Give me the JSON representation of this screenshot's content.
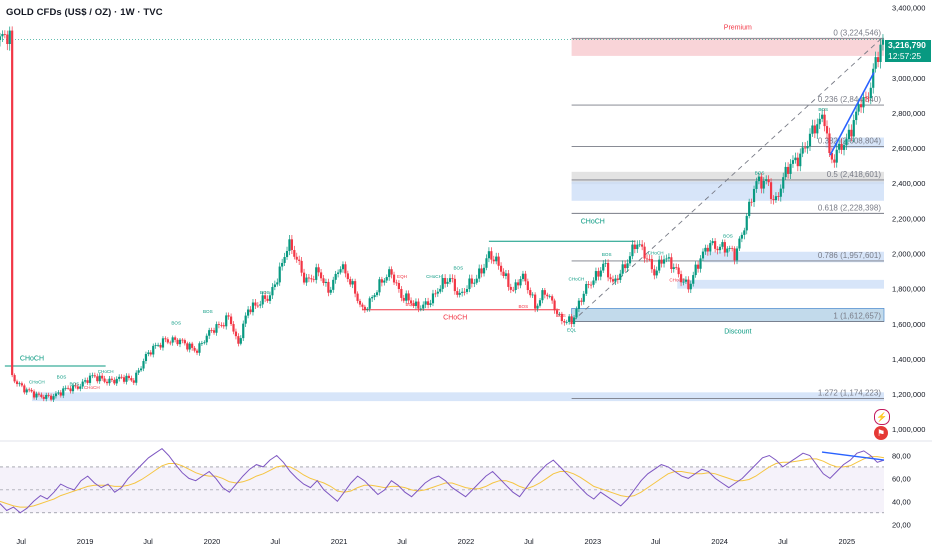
{
  "header": {
    "title": "GOLD CFDs (US$ / OZ) · 1W · TVC"
  },
  "last_price": {
    "value": "3,216,790",
    "countdown": "12:57:25"
  },
  "colors": {
    "up": "#089981",
    "down": "#f23645",
    "price_line": "#131722",
    "premium_zone": "#f7c5cb",
    "discount_zone": "#b8d4e8",
    "blue_zone": "#c9dcf7",
    "gray_zone": "#d9d9d9",
    "rsi_line": "#7e57c2",
    "rsi_ma": "#f5c542",
    "trend_line": "#2962ff"
  },
  "icons": {
    "alert": "flash-icon",
    "event": "flag-icon"
  },
  "chart_data": [
    {
      "type": "candlestick",
      "title": "GOLD CFDs (US$ / OZ) · 1W · TVC",
      "x_ticks": [
        "Jul",
        "2019",
        "Jul",
        "2020",
        "Jul",
        "2021",
        "Jul",
        "2022",
        "Jul",
        "2023",
        "Jul",
        "2024",
        "Jul",
        "2025"
      ],
      "y_ticks": [
        "3,400,000",
        "3,200,000",
        "3,000,000",
        "2,800,000",
        "2,600,000",
        "2,400,000",
        "2,200,000",
        "2,000,000",
        "1,800,000",
        "1,600,000",
        "1,400,000",
        "1,200,000",
        "1,000,000"
      ],
      "ylim": [
        950,
        3420
      ],
      "grid": false,
      "last_value": 3216.79,
      "price_path": [
        [
          "2018-06-01",
          1300
        ],
        [
          "2018-08-15",
          1180
        ],
        [
          "2018-10-15",
          1200
        ],
        [
          "2018-12-01",
          1240
        ],
        [
          "2019-01-15",
          1290
        ],
        [
          "2019-04-01",
          1280
        ],
        [
          "2019-05-20",
          1285
        ],
        [
          "2019-06-20",
          1400
        ],
        [
          "2019-08-20",
          1520
        ],
        [
          "2019-10-01",
          1490
        ],
        [
          "2019-11-20",
          1460
        ],
        [
          "2020-01-08",
          1570
        ],
        [
          "2020-02-20",
          1650
        ],
        [
          "2020-03-15",
          1460
        ],
        [
          "2020-04-15",
          1700
        ],
        [
          "2020-06-15",
          1740
        ],
        [
          "2020-08-07",
          2060
        ],
        [
          "2020-09-25",
          1850
        ],
        [
          "2020-11-01",
          1900
        ],
        [
          "2020-11-30",
          1770
        ],
        [
          "2021-01-05",
          1950
        ],
        [
          "2021-03-08",
          1680
        ],
        [
          "2021-06-01",
          1900
        ],
        [
          "2021-06-30",
          1760
        ],
        [
          "2021-08-09",
          1690
        ],
        [
          "2021-09-30",
          1750
        ],
        [
          "2021-11-16",
          1870
        ],
        [
          "2021-12-15",
          1760
        ],
        [
          "2022-01-25",
          1840
        ],
        [
          "2022-03-08",
          2000
        ],
        [
          "2022-05-16",
          1800
        ],
        [
          "2022-06-10",
          1870
        ],
        [
          "2022-07-20",
          1700
        ],
        [
          "2022-08-15",
          1800
        ],
        [
          "2022-09-28",
          1620
        ],
        [
          "2022-11-03",
          1630
        ],
        [
          "2022-12-15",
          1800
        ],
        [
          "2023-02-01",
          1950
        ],
        [
          "2023-02-28",
          1810
        ],
        [
          "2023-05-04",
          2060
        ],
        [
          "2023-06-29",
          1900
        ],
        [
          "2023-07-20",
          1980
        ],
        [
          "2023-10-05",
          1820
        ],
        [
          "2023-12-04",
          2070
        ],
        [
          "2024-02-14",
          1990
        ],
        [
          "2024-04-12",
          2380
        ],
        [
          "2024-05-20",
          2420
        ],
        [
          "2024-06-07",
          2290
        ],
        [
          "2024-07-17",
          2480
        ],
        [
          "2024-09-25",
          2680
        ],
        [
          "2024-10-30",
          2790
        ],
        [
          "2024-11-14",
          2540
        ],
        [
          "2024-12-31",
          2620
        ],
        [
          "2025-02-10",
          2900
        ],
        [
          "2025-02-28",
          2850
        ],
        [
          "2025-04-11",
          3216.79
        ]
      ],
      "fibonacci": [
        {
          "label": "0 (3,224,546)",
          "level": 0,
          "value": 3224.546
        },
        {
          "label": "0.236 (2,844,840)",
          "level": 0.236,
          "value": 2844.84
        },
        {
          "label": "0.382 (2,608,804)",
          "level": 0.382,
          "value": 2608.804
        },
        {
          "label": "0.5 (2,418,601)",
          "level": 0.5,
          "value": 2418.601
        },
        {
          "label": "0.618 (2,228,398)",
          "level": 0.618,
          "value": 2228.398
        },
        {
          "label": "0.786 (1,957,601)",
          "level": 0.786,
          "value": 1957.601
        },
        {
          "label": "1 (1,612,657)",
          "level": 1,
          "value": 1612.657
        },
        {
          "label": "1.272 (1,174,223)",
          "level": 1.272,
          "value": 1174.223
        }
      ],
      "zones": [
        {
          "label": "Premium",
          "kind": "premium",
          "x_start": "2022-11-01",
          "x_end": "2025-04-18",
          "y_low": 3124.546,
          "y_high": 3224.546
        },
        {
          "label": "Discount",
          "kind": "discount",
          "x_start": "2022-11-01",
          "x_end": "2025-04-18",
          "y_low": 1612.657,
          "y_high": 1687.657
        },
        {
          "label": "",
          "kind": "gray",
          "x_start": "2022-11-01",
          "x_end": "2025-04-18",
          "y_low": 2395,
          "y_high": 2465
        },
        {
          "label": "",
          "kind": "blue",
          "x_start": "2022-11-01",
          "x_end": "2025-04-18",
          "y_low": 2300,
          "y_high": 2410
        },
        {
          "label": "",
          "kind": "blue",
          "x_start": "2023-11-15",
          "x_end": "2025-04-18",
          "y_low": 1950,
          "y_high": 2010
        },
        {
          "label": "",
          "kind": "blue",
          "x_start": "2023-09-01",
          "x_end": "2025-04-18",
          "y_low": 1800,
          "y_high": 1850
        },
        {
          "label": "",
          "kind": "blue",
          "x_start": "2024-11-01",
          "x_end": "2025-04-18",
          "y_low": 2600,
          "y_high": 2660
        },
        {
          "label": "",
          "kind": "blue",
          "x_start": "2018-08-01",
          "x_end": "2025-04-18",
          "y_low": 1160,
          "y_high": 1210
        }
      ],
      "annotations": [
        {
          "text": "CHoCH",
          "x": "2018-08-01",
          "y": 1390,
          "color": "up"
        },
        {
          "text": "CHoCH",
          "x": "2021-12-01",
          "y": 1625,
          "color": "down"
        },
        {
          "text": "CHoCH",
          "x": "2023-01-01",
          "y": 2170,
          "color": "up"
        },
        {
          "text": "EQL",
          "x": "2022-11-01",
          "y": 1555,
          "color": "up"
        },
        {
          "text": "BOS",
          "x": "2019-09-20",
          "y": 1595,
          "color": "up"
        },
        {
          "text": "BOS",
          "x": "2019-12-20",
          "y": 1660,
          "color": "up"
        },
        {
          "text": "BOS",
          "x": "2020-06-01",
          "y": 1770,
          "color": "up"
        },
        {
          "text": "BOS",
          "x": "2021-07-25",
          "y": 1700,
          "color": "down"
        },
        {
          "text": "BOS",
          "x": "2022-06-15",
          "y": 1690,
          "color": "down"
        },
        {
          "text": "BOS",
          "x": "2022-10-01",
          "y": 1640,
          "color": "down"
        },
        {
          "text": "CHoCH",
          "x": "2022-11-15",
          "y": 1845,
          "color": "up"
        },
        {
          "text": "BOS",
          "x": "2023-02-10",
          "y": 1985,
          "color": "up"
        },
        {
          "text": "CHoCH",
          "x": "2023-07-01",
          "y": 1995,
          "color": "up"
        },
        {
          "text": "CHoCH",
          "x": "2023-09-01",
          "y": 1840,
          "color": "down"
        },
        {
          "text": "BOS",
          "x": "2024-01-25",
          "y": 2090,
          "color": "up"
        },
        {
          "text": "BOS",
          "x": "2024-04-25",
          "y": 2450,
          "color": "up"
        },
        {
          "text": "BOS",
          "x": "2024-10-25",
          "y": 2810,
          "color": "up"
        },
        {
          "text": "EQH",
          "x": "2021-07-01",
          "y": 1860,
          "color": "down"
        },
        {
          "text": "CHoCH",
          "x": "2021-10-01",
          "y": 1860,
          "color": "up"
        },
        {
          "text": "BOS",
          "x": "2021-12-10",
          "y": 1910,
          "color": "up"
        },
        {
          "text": "CHoCH",
          "x": "2019-03-01",
          "y": 1320,
          "color": "up"
        },
        {
          "text": "CHoCH",
          "x": "2019-01-20",
          "y": 1230,
          "color": "down"
        },
        {
          "text": "BOS",
          "x": "2018-10-25",
          "y": 1290,
          "color": "up"
        },
        {
          "text": "CHoCH",
          "x": "2018-08-15",
          "y": 1260,
          "color": "up"
        },
        {
          "text": "BOS",
          "x": "2018-12-01",
          "y": 1250,
          "color": "up"
        }
      ],
      "structure_lines": [
        {
          "x_start": "2018-05-15",
          "x_end": "2019-03-01",
          "y": 1360,
          "color": "up"
        },
        {
          "x_start": "2021-03-08",
          "x_end": "2022-09-28",
          "y": 1680,
          "color": "down"
        },
        {
          "x_start": "2022-03-08",
          "x_end": "2023-05-04",
          "y": 2070,
          "color": "up"
        }
      ]
    },
    {
      "type": "line",
      "title": "",
      "y_ticks": [
        "80,00",
        "60,00",
        "40,00",
        "20,00"
      ],
      "ylim": [
        15,
        90
      ],
      "bands": [
        70,
        50,
        30
      ],
      "series": [
        {
          "values": [
            38,
            32,
            35,
            30,
            34,
            40,
            45,
            42,
            48,
            55,
            52,
            50,
            58,
            62,
            56,
            52,
            55,
            48,
            52,
            60,
            66,
            72,
            78,
            82,
            86,
            80,
            72,
            65,
            60,
            58,
            62,
            66,
            60,
            52,
            48,
            55,
            62,
            68,
            72,
            70,
            76,
            80,
            74,
            66,
            60,
            55,
            52,
            58,
            50,
            45,
            40,
            48,
            56,
            62,
            58,
            52,
            46,
            50,
            58,
            54,
            48,
            44,
            50,
            56,
            60,
            62,
            58,
            52,
            48,
            44,
            50,
            56,
            62,
            66,
            60,
            54,
            48,
            44,
            52,
            60,
            66,
            72,
            76,
            70,
            64,
            58,
            52,
            46,
            42,
            48,
            44,
            40,
            36,
            42,
            50,
            58,
            64,
            68,
            72,
            70,
            66,
            62,
            60,
            64,
            68,
            66,
            60,
            56,
            52,
            56,
            60,
            66,
            72,
            78,
            80,
            76,
            70,
            74,
            78,
            82,
            80,
            72,
            64,
            60,
            66,
            72,
            76,
            82,
            84,
            80,
            74,
            76
          ]
        },
        {
          "values": [
            40,
            38,
            36,
            35,
            35,
            36,
            38,
            40,
            42,
            45,
            47,
            49,
            51,
            53,
            54,
            54,
            54,
            53,
            53,
            54,
            56,
            59,
            63,
            67,
            71,
            73,
            73,
            71,
            68,
            65,
            63,
            62,
            62,
            60,
            57,
            56,
            57,
            59,
            62,
            64,
            67,
            70,
            71,
            70,
            67,
            63,
            60,
            58,
            56,
            53,
            49,
            48,
            49,
            52,
            54,
            54,
            53,
            52,
            53,
            53,
            52,
            50,
            49,
            50,
            52,
            54,
            56,
            56,
            54,
            52,
            51,
            51,
            53,
            56,
            58,
            58,
            56,
            53,
            51,
            53,
            56,
            60,
            64,
            66,
            66,
            64,
            61,
            57,
            53,
            51,
            49,
            47,
            45,
            44,
            45,
            48,
            52,
            56,
            60,
            64,
            66,
            66,
            65,
            64,
            64,
            65,
            64,
            62,
            60,
            58,
            58,
            59,
            62,
            66,
            70,
            73,
            74,
            74,
            75,
            76,
            77,
            77,
            75,
            72,
            70,
            70,
            71,
            74,
            77,
            79,
            79,
            78
          ]
        }
      ]
    }
  ]
}
